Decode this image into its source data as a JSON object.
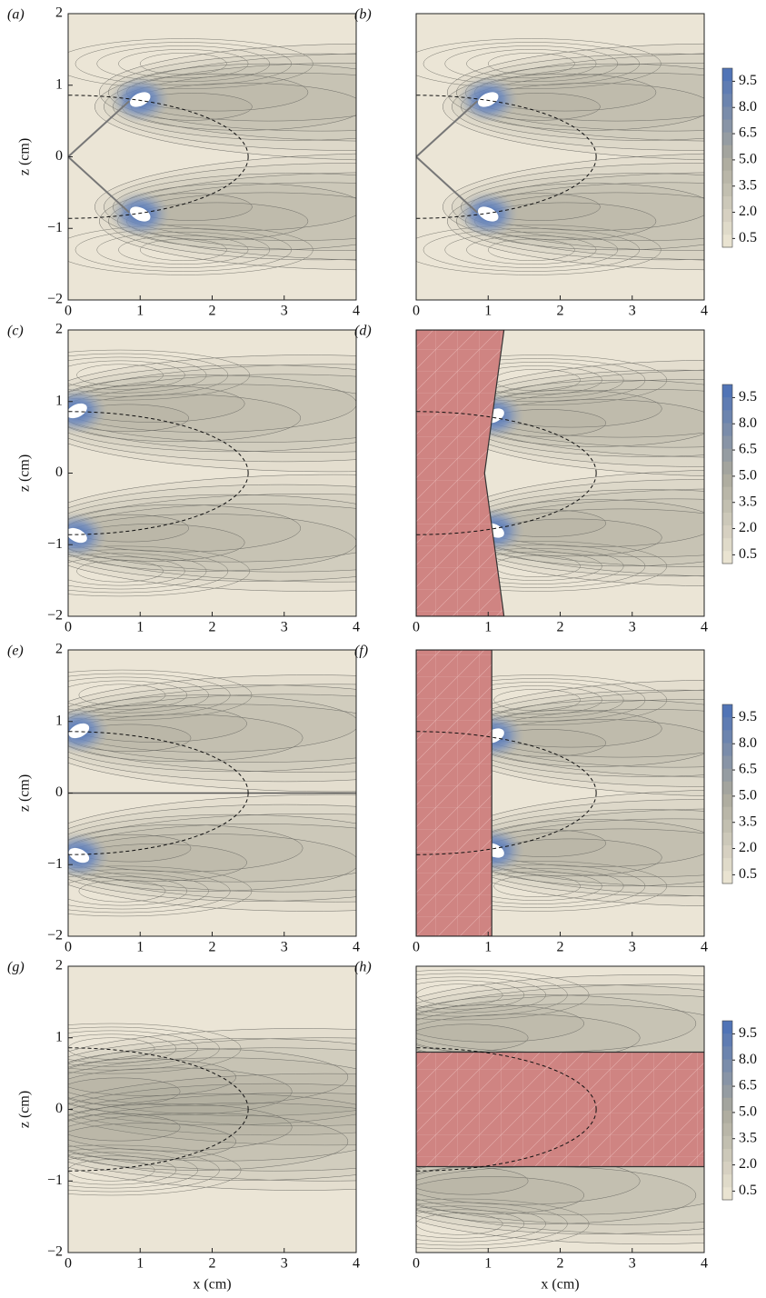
{
  "chart_data": [
    {
      "type": "contour",
      "label": "(a)",
      "ylabel": "z (cm)",
      "xlim": [
        0,
        4
      ],
      "ylim": [
        -2,
        2
      ],
      "xticks": [
        0,
        1,
        2,
        3,
        4
      ],
      "yticks": [
        {
          "value": -2,
          "label": "−2"
        },
        {
          "value": -1,
          "label": "−1"
        },
        0,
        1,
        2
      ]
    },
    {
      "type": "contour",
      "label": "(b)",
      "xlim": [
        0,
        4
      ],
      "ylim": [
        -2,
        2
      ],
      "xticks": [
        0,
        1,
        2,
        3,
        4
      ],
      "colorbar": {
        "ticks": [
          {
            "value": 9.5,
            "label": "9.5"
          },
          {
            "value": 8,
            "label": "8.0"
          },
          {
            "value": 6.5,
            "label": "6.5"
          },
          {
            "value": 5,
            "label": "5.0"
          },
          {
            "value": 3.5,
            "label": "3.5"
          },
          {
            "value": 2,
            "label": "2.0"
          },
          {
            "value": 0.5,
            "label": "0.5"
          }
        ],
        "colors": [
          "#eee7d5",
          "#aaa89c",
          "#4a70b8"
        ]
      }
    },
    {
      "type": "contour",
      "label": "(c)",
      "ylabel": "z (cm)",
      "xlim": [
        0,
        4
      ],
      "ylim": [
        -2,
        2
      ],
      "xticks": [
        0,
        1,
        2,
        3,
        4
      ],
      "yticks": [
        {
          "value": -2,
          "label": "−2"
        },
        {
          "value": -1,
          "label": "−1"
        },
        0,
        1,
        2
      ]
    },
    {
      "type": "contour",
      "label": "(d)",
      "xlim": [
        0,
        4
      ],
      "ylim": [
        -2,
        2
      ],
      "xticks": [
        0,
        1,
        2,
        3,
        4
      ],
      "colorbar": {
        "ticks": [
          {
            "value": 9.5,
            "label": "9.5"
          },
          {
            "value": 8,
            "label": "8.0"
          },
          {
            "value": 6.5,
            "label": "6.5"
          },
          {
            "value": 5,
            "label": "5.0"
          },
          {
            "value": 3.5,
            "label": "3.5"
          },
          {
            "value": 2,
            "label": "2.0"
          },
          {
            "value": 0.5,
            "label": "0.5"
          }
        ],
        "colors": [
          "#eee7d5",
          "#aaa89c",
          "#4a70b8"
        ]
      }
    },
    {
      "type": "contour",
      "label": "(e)",
      "ylabel": "z (cm)",
      "xlim": [
        0,
        4
      ],
      "ylim": [
        -2,
        2
      ],
      "xticks": [
        0,
        1,
        2,
        3,
        4
      ],
      "yticks": [
        {
          "value": -2,
          "label": "−2"
        },
        {
          "value": -1,
          "label": "−1"
        },
        0,
        1,
        2
      ]
    },
    {
      "type": "contour",
      "label": "(f)",
      "xlim": [
        0,
        4
      ],
      "ylim": [
        -2,
        2
      ],
      "xticks": [
        0,
        1,
        2,
        3,
        4
      ],
      "colorbar": {
        "ticks": [
          {
            "value": 9.5,
            "label": "9.5"
          },
          {
            "value": 8,
            "label": "8.0"
          },
          {
            "value": 6.5,
            "label": "6.5"
          },
          {
            "value": 5,
            "label": "5.0"
          },
          {
            "value": 3.5,
            "label": "3.5"
          },
          {
            "value": 2,
            "label": "2.0"
          },
          {
            "value": 0.5,
            "label": "0.5"
          }
        ],
        "colors": [
          "#eee7d5",
          "#aaa89c",
          "#4a70b8"
        ]
      }
    },
    {
      "type": "contour",
      "label": "(g)",
      "ylabel": "z (cm)",
      "xlabel": "x (cm)",
      "xlim": [
        0,
        4
      ],
      "ylim": [
        -2,
        2
      ],
      "xticks": [
        0,
        1,
        2,
        3,
        4
      ],
      "yticks": [
        {
          "value": -2,
          "label": "−2"
        },
        {
          "value": -1,
          "label": "−1"
        },
        0,
        1,
        2
      ]
    },
    {
      "type": "contour",
      "label": "(h)",
      "xlabel": "x (cm)",
      "xlim": [
        0,
        4
      ],
      "ylim": [
        -2,
        2
      ],
      "xticks": [
        0,
        1,
        2,
        3,
        4
      ],
      "colorbar": {
        "ticks": [
          {
            "value": 9.5,
            "label": "9.5"
          },
          {
            "value": 8,
            "label": "8.0"
          },
          {
            "value": 6.5,
            "label": "6.5"
          },
          {
            "value": 5,
            "label": "5.0"
          },
          {
            "value": 3.5,
            "label": "3.5"
          },
          {
            "value": 2,
            "label": "2.0"
          },
          {
            "value": 0.5,
            "label": "0.5"
          }
        ],
        "colors": [
          "#eee7d5",
          "#aaa89c",
          "#4a70b8"
        ]
      }
    }
  ]
}
